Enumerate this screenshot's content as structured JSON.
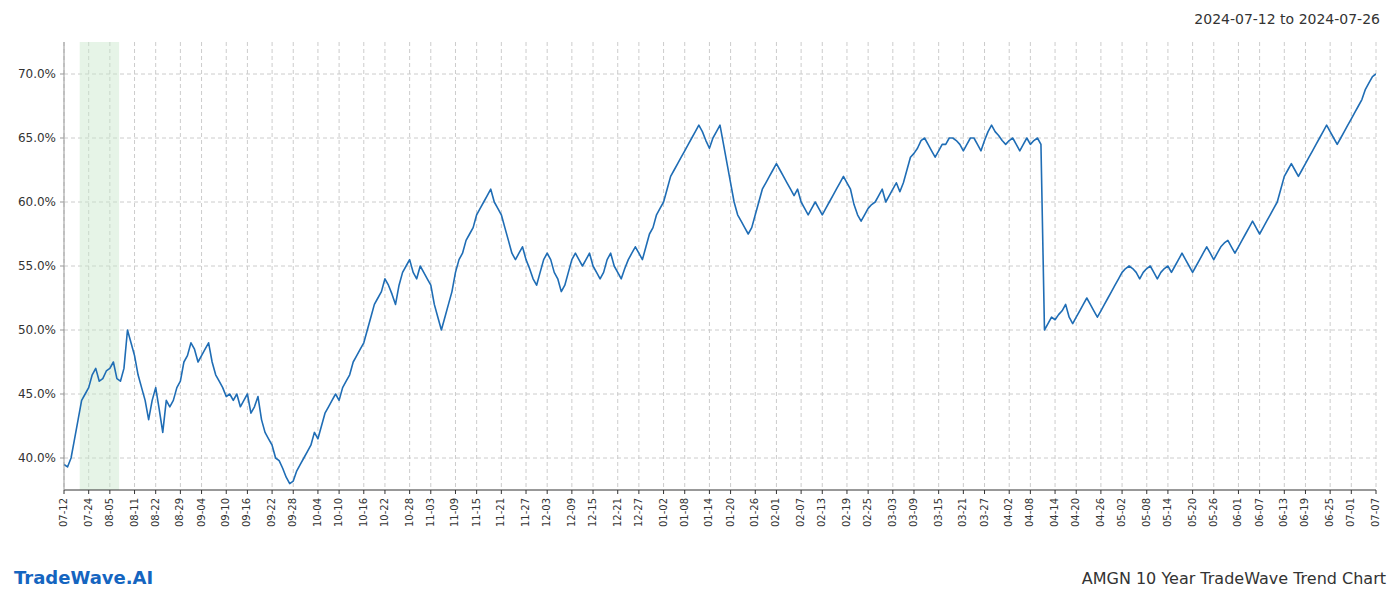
{
  "chart_data": {
    "type": "line",
    "color": "#1f6db5",
    "background_color": "#ffffff",
    "grid": true,
    "grid_color": "#cccccc",
    "annotations": [
      {
        "text": "2024-07-12 to 2024-07-26"
      },
      {
        "text": "TradeWave.AI",
        "color": "#1565C0"
      },
      {
        "text": "AMGN 10 Year TradeWave Trend Chart"
      }
    ],
    "shade": {
      "from": 4.464,
      "to": 15.624,
      "color": "#c8e6c9"
    },
    "ylim": [
      0.375,
      0.725
    ],
    "yticks": [
      {
        "value": 0.4,
        "label": "40.0%"
      },
      {
        "value": 0.45,
        "label": "45.0%"
      },
      {
        "value": 0.5,
        "label": "50.0%"
      },
      {
        "value": 0.55,
        "label": "55.0%"
      },
      {
        "value": 0.6,
        "label": "60.0%"
      },
      {
        "value": 0.65,
        "label": "65.0%"
      },
      {
        "value": 0.7,
        "label": "70.0%"
      }
    ],
    "categories": [
      "07-12",
      null,
      null,
      null,
      null,
      null,
      null,
      "07-24",
      null,
      null,
      null,
      null,
      null,
      "08-05",
      null,
      null,
      null,
      null,
      null,
      null,
      "08-11",
      null,
      null,
      null,
      null,
      null,
      "08-22",
      null,
      null,
      null,
      null,
      null,
      null,
      "08-29",
      null,
      null,
      null,
      null,
      null,
      "09-04",
      null,
      null,
      null,
      null,
      null,
      null,
      "09-10",
      null,
      null,
      null,
      null,
      null,
      "09-16",
      null,
      null,
      null,
      null,
      null,
      null,
      "09-22",
      null,
      null,
      null,
      null,
      null,
      "09-28",
      null,
      null,
      null,
      null,
      null,
      null,
      "10-04",
      null,
      null,
      null,
      null,
      null,
      "10-10",
      null,
      null,
      null,
      null,
      null,
      null,
      "10-16",
      null,
      null,
      null,
      null,
      null,
      "10-22",
      null,
      null,
      null,
      null,
      null,
      null,
      "10-28",
      null,
      null,
      null,
      null,
      null,
      "11-03",
      null,
      null,
      null,
      null,
      null,
      null,
      "11-09",
      null,
      null,
      null,
      null,
      null,
      "11-15",
      null,
      null,
      null,
      null,
      null,
      null,
      "11-21",
      null,
      null,
      null,
      null,
      null,
      null,
      "11-27",
      null,
      null,
      null,
      null,
      null,
      "12-03",
      null,
      null,
      null,
      null,
      null,
      null,
      "12-09",
      null,
      null,
      null,
      null,
      null,
      "12-15",
      null,
      null,
      null,
      null,
      null,
      null,
      "12-21",
      null,
      null,
      null,
      null,
      null,
      "12-27",
      null,
      null,
      null,
      null,
      null,
      null,
      "01-02",
      null,
      null,
      null,
      null,
      null,
      "01-08",
      null,
      null,
      null,
      null,
      null,
      null,
      "01-14",
      null,
      null,
      null,
      null,
      null,
      "01-20",
      null,
      null,
      null,
      null,
      null,
      null,
      "01-26",
      null,
      null,
      null,
      null,
      null,
      "02-01",
      null,
      null,
      null,
      null,
      null,
      null,
      "02-07",
      null,
      null,
      null,
      null,
      null,
      "02-13",
      null,
      null,
      null,
      null,
      null,
      null,
      "02-19",
      null,
      null,
      null,
      null,
      null,
      "02-25",
      null,
      null,
      null,
      null,
      null,
      null,
      "03-03",
      null,
      null,
      null,
      null,
      null,
      "03-09",
      null,
      null,
      null,
      null,
      null,
      null,
      "03-15",
      null,
      null,
      null,
      null,
      null,
      null,
      "03-21",
      null,
      null,
      null,
      null,
      null,
      "03-27",
      null,
      null,
      null,
      null,
      null,
      null,
      "04-02",
      null,
      null,
      null,
      null,
      null,
      "04-08",
      null,
      null,
      null,
      null,
      null,
      null,
      "04-14",
      null,
      null,
      null,
      null,
      null,
      "04-20",
      null,
      null,
      null,
      null,
      null,
      null,
      "04-26",
      null,
      null,
      null,
      null,
      null,
      "05-02",
      null,
      null,
      null,
      null,
      null,
      null,
      "05-08",
      null,
      null,
      null,
      null,
      null,
      "05-14",
      null,
      null,
      null,
      null,
      null,
      null,
      "05-20",
      null,
      null,
      null,
      null,
      null,
      "05-26",
      null,
      null,
      null,
      null,
      null,
      null,
      "06-01",
      null,
      null,
      null,
      null,
      null,
      "06-07",
      null,
      null,
      null,
      null,
      null,
      null,
      "06-13",
      null,
      null,
      null,
      null,
      null,
      "06-19",
      null,
      null,
      null,
      null,
      null,
      null,
      "06-25",
      null,
      null,
      null,
      null,
      null,
      "07-01",
      null,
      null,
      null,
      null,
      null,
      null,
      "07-07"
    ],
    "values": [
      0.395,
      0.393,
      0.4,
      0.415,
      0.43,
      0.445,
      0.45,
      0.455,
      0.465,
      0.47,
      0.46,
      0.462,
      0.468,
      0.47,
      0.475,
      0.462,
      0.46,
      0.47,
      0.5,
      0.49,
      0.48,
      0.465,
      0.455,
      0.445,
      0.43,
      0.445,
      0.455,
      0.438,
      0.42,
      0.445,
      0.44,
      0.445,
      0.455,
      0.46,
      0.475,
      0.48,
      0.49,
      0.485,
      0.475,
      0.48,
      0.485,
      0.49,
      0.475,
      0.465,
      0.46,
      0.455,
      0.448,
      0.45,
      0.445,
      0.45,
      0.44,
      0.445,
      0.45,
      0.435,
      0.44,
      0.448,
      0.43,
      0.42,
      0.415,
      0.41,
      0.4,
      0.398,
      0.392,
      0.385,
      0.38,
      0.382,
      0.39,
      0.395,
      0.4,
      0.405,
      0.41,
      0.42,
      0.415,
      0.425,
      0.435,
      0.44,
      0.445,
      0.45,
      0.445,
      0.455,
      0.46,
      0.465,
      0.475,
      0.48,
      0.485,
      0.49,
      0.5,
      0.51,
      0.52,
      0.525,
      0.53,
      0.54,
      0.535,
      0.528,
      0.52,
      0.535,
      0.545,
      0.55,
      0.555,
      0.545,
      0.54,
      0.55,
      0.545,
      0.54,
      0.535,
      0.52,
      0.51,
      0.5,
      0.51,
      0.52,
      0.53,
      0.545,
      0.555,
      0.56,
      0.57,
      0.575,
      0.58,
      0.59,
      0.595,
      0.6,
      0.605,
      0.61,
      0.6,
      0.595,
      0.59,
      0.58,
      0.57,
      0.56,
      0.555,
      0.56,
      0.565,
      0.555,
      0.548,
      0.54,
      0.535,
      0.545,
      0.555,
      0.56,
      0.555,
      0.545,
      0.54,
      0.53,
      0.535,
      0.545,
      0.555,
      0.56,
      0.555,
      0.55,
      0.555,
      0.56,
      0.55,
      0.545,
      0.54,
      0.545,
      0.555,
      0.56,
      0.55,
      0.545,
      0.54,
      0.548,
      0.555,
      0.56,
      0.565,
      0.56,
      0.555,
      0.565,
      0.575,
      0.58,
      0.59,
      0.595,
      0.6,
      0.61,
      0.62,
      0.625,
      0.63,
      0.635,
      0.64,
      0.645,
      0.65,
      0.655,
      0.66,
      0.655,
      0.648,
      0.642,
      0.65,
      0.655,
      0.66,
      0.645,
      0.63,
      0.615,
      0.6,
      0.59,
      0.585,
      0.58,
      0.575,
      0.58,
      0.59,
      0.6,
      0.61,
      0.615,
      0.62,
      0.625,
      0.63,
      0.625,
      0.62,
      0.615,
      0.61,
      0.605,
      0.61,
      0.6,
      0.595,
      0.59,
      0.595,
      0.6,
      0.595,
      0.59,
      0.595,
      0.6,
      0.605,
      0.61,
      0.615,
      0.62,
      0.615,
      0.61,
      0.598,
      0.59,
      0.585,
      0.59,
      0.595,
      0.598,
      0.6,
      0.605,
      0.61,
      0.6,
      0.605,
      0.61,
      0.615,
      0.608,
      0.615,
      0.625,
      0.635,
      0.638,
      0.642,
      0.648,
      0.65,
      0.645,
      0.64,
      0.635,
      0.64,
      0.645,
      0.645,
      0.65,
      0.65,
      0.648,
      0.645,
      0.64,
      0.645,
      0.65,
      0.65,
      0.645,
      0.64,
      0.648,
      0.655,
      0.66,
      0.655,
      0.652,
      0.648,
      0.645,
      0.648,
      0.65,
      0.645,
      0.64,
      0.645,
      0.65,
      0.645,
      0.648,
      0.65,
      0.645,
      0.5,
      0.505,
      0.51,
      0.508,
      0.512,
      0.515,
      0.52,
      0.51,
      0.505,
      0.51,
      0.515,
      0.52,
      0.525,
      0.52,
      0.515,
      0.51,
      0.515,
      0.52,
      0.525,
      0.53,
      0.535,
      0.54,
      0.545,
      0.548,
      0.55,
      0.548,
      0.545,
      0.54,
      0.545,
      0.548,
      0.55,
      0.545,
      0.54,
      0.545,
      0.548,
      0.55,
      0.545,
      0.55,
      0.555,
      0.56,
      0.555,
      0.55,
      0.545,
      0.55,
      0.555,
      0.56,
      0.565,
      0.56,
      0.555,
      0.56,
      0.565,
      0.568,
      0.57,
      0.565,
      0.56,
      0.565,
      0.57,
      0.575,
      0.58,
      0.585,
      0.58,
      0.575,
      0.58,
      0.585,
      0.59,
      0.595,
      0.6,
      0.61,
      0.62,
      0.625,
      0.63,
      0.625,
      0.62,
      0.625,
      0.63,
      0.635,
      0.64,
      0.645,
      0.65,
      0.655,
      0.66,
      0.655,
      0.65,
      0.645,
      0.65,
      0.655,
      0.66,
      0.665,
      0.67,
      0.675,
      0.68,
      0.688,
      0.693,
      0.698,
      0.7
    ]
  }
}
